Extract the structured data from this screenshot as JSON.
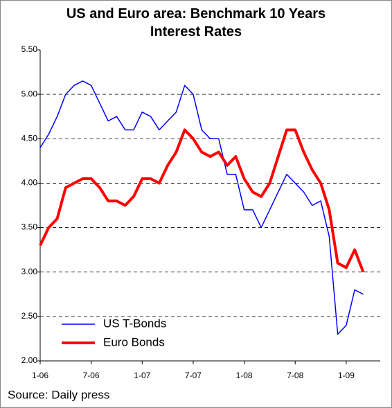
{
  "chart_data": {
    "type": "line",
    "title": "US and Euro area: Benchmark 10 Years Interest Rates",
    "source": "Source: Daily press",
    "x": [
      "2006-01",
      "2006-02",
      "2006-03",
      "2006-04",
      "2006-05",
      "2006-06",
      "2006-07",
      "2006-08",
      "2006-09",
      "2006-10",
      "2006-11",
      "2006-12",
      "2007-01",
      "2007-02",
      "2007-03",
      "2007-04",
      "2007-05",
      "2007-06",
      "2007-07",
      "2007-08",
      "2007-09",
      "2007-10",
      "2007-11",
      "2007-12",
      "2008-01",
      "2008-02",
      "2008-03",
      "2008-04",
      "2008-05",
      "2008-06",
      "2008-07",
      "2008-08",
      "2008-09",
      "2008-10",
      "2008-11",
      "2008-12",
      "2009-01",
      "2009-02",
      "2009-03"
    ],
    "series": [
      {
        "name": "US T-Bonds",
        "color": "#0000ff",
        "width": 1.5,
        "values": [
          4.4,
          4.55,
          4.75,
          5.0,
          5.1,
          5.15,
          5.1,
          4.9,
          4.7,
          4.75,
          4.6,
          4.6,
          4.8,
          4.75,
          4.6,
          4.7,
          4.8,
          5.1,
          5.0,
          4.6,
          4.5,
          4.5,
          4.1,
          4.1,
          3.7,
          3.7,
          3.5,
          3.7,
          3.9,
          4.1,
          4.0,
          3.9,
          3.75,
          3.8,
          3.4,
          2.3,
          2.4,
          2.8,
          2.75
        ]
      },
      {
        "name": "Euro Bonds",
        "color": "#ff0000",
        "width": 4,
        "values": [
          3.3,
          3.5,
          3.6,
          3.95,
          4.0,
          4.05,
          4.05,
          3.95,
          3.8,
          3.8,
          3.75,
          3.85,
          4.05,
          4.05,
          4.0,
          4.2,
          4.35,
          4.6,
          4.5,
          4.35,
          4.3,
          4.35,
          4.2,
          4.3,
          4.05,
          3.9,
          3.85,
          4.0,
          4.3,
          4.6,
          4.6,
          4.35,
          4.15,
          4.0,
          3.7,
          3.1,
          3.05,
          3.25,
          3.0
        ]
      }
    ],
    "xlim": [
      "2006-01",
      "2009-05"
    ],
    "xticks": [
      {
        "value": "2006-01",
        "label": "1-06"
      },
      {
        "value": "2006-07",
        "label": "7-06"
      },
      {
        "value": "2007-01",
        "label": "1-07"
      },
      {
        "value": "2007-07",
        "label": "7-07"
      },
      {
        "value": "2008-01",
        "label": "1-08"
      },
      {
        "value": "2008-07",
        "label": "7-08"
      },
      {
        "value": "2009-01",
        "label": "1-09"
      }
    ],
    "ylim": [
      2,
      5.5
    ],
    "yticks": [
      {
        "value": 2,
        "label": "2.00"
      },
      {
        "value": 2.5,
        "label": "2.50"
      },
      {
        "value": 3,
        "label": "3.00"
      },
      {
        "value": 3.5,
        "label": "3.50"
      },
      {
        "value": 4,
        "label": "4.00"
      },
      {
        "value": 4.5,
        "label": "4.50"
      },
      {
        "value": 5,
        "label": "5.00"
      },
      {
        "value": 5.5,
        "label": "5.50"
      }
    ],
    "grid": true,
    "legend": "lower left"
  }
}
